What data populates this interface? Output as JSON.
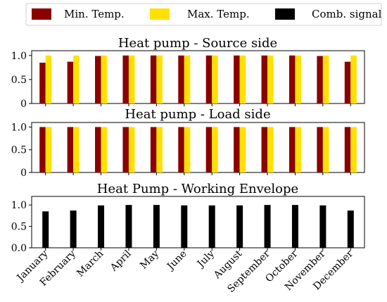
{
  "legend": {
    "placement": "top",
    "items": [
      {
        "label": "Min. Temp.",
        "color": "#8B0000"
      },
      {
        "label": "Max. Temp.",
        "color": "#FFE000"
      },
      {
        "label": "Comb. signal",
        "color": "#000000"
      }
    ]
  },
  "chart_data": [
    {
      "type": "bar",
      "title": "Heat pump - Source side",
      "categories": [
        "January",
        "February",
        "March",
        "April",
        "May",
        "June",
        "July",
        "August",
        "September",
        "October",
        "November",
        "December"
      ],
      "ylim": [
        0,
        1.1
      ],
      "yticks": [
        "0",
        "0.5",
        "1.0"
      ],
      "grid": false,
      "series": [
        {
          "name": "Min. Temp.",
          "color": "#8B0000",
          "values": [
            0.85,
            0.87,
            0.99,
            1.0,
            1.0,
            1.0,
            1.0,
            1.0,
            1.0,
            1.0,
            0.99,
            0.87
          ]
        },
        {
          "name": "Max. Temp.",
          "color": "#FFE000",
          "values": [
            1.0,
            1.0,
            1.0,
            1.0,
            1.0,
            1.0,
            1.0,
            1.0,
            1.0,
            1.0,
            1.0,
            1.0
          ]
        }
      ]
    },
    {
      "type": "bar",
      "title": "Heat pump - Load side",
      "categories": [
        "January",
        "February",
        "March",
        "April",
        "May",
        "June",
        "July",
        "August",
        "September",
        "October",
        "November",
        "December"
      ],
      "ylim": [
        0,
        1.1
      ],
      "yticks": [
        "0",
        "0.5",
        "1.0"
      ],
      "grid": false,
      "series": [
        {
          "name": "Min. Temp.",
          "color": "#8B0000",
          "values": [
            1.0,
            1.0,
            1.0,
            1.0,
            1.0,
            1.0,
            1.0,
            1.0,
            1.0,
            1.0,
            1.0,
            1.0
          ]
        },
        {
          "name": "Max. Temp.",
          "color": "#FFE000",
          "values": [
            1.0,
            1.0,
            1.0,
            1.0,
            1.0,
            1.0,
            1.0,
            1.0,
            1.0,
            1.0,
            1.0,
            1.0
          ]
        }
      ]
    },
    {
      "type": "bar",
      "title": "Heat Pump - Working Envelope",
      "categories": [
        "January",
        "February",
        "March",
        "April",
        "May",
        "June",
        "July",
        "August",
        "September",
        "October",
        "November",
        "December"
      ],
      "ylim": [
        0,
        1.2
      ],
      "yticks": [
        "0.0",
        "0.5",
        "1.0"
      ],
      "grid": false,
      "series": [
        {
          "name": "Comb. signal",
          "color": "#000000",
          "values": [
            0.85,
            0.87,
            0.99,
            1.0,
            1.0,
            0.99,
            0.99,
            0.99,
            1.0,
            1.0,
            0.99,
            0.87
          ]
        }
      ]
    }
  ]
}
